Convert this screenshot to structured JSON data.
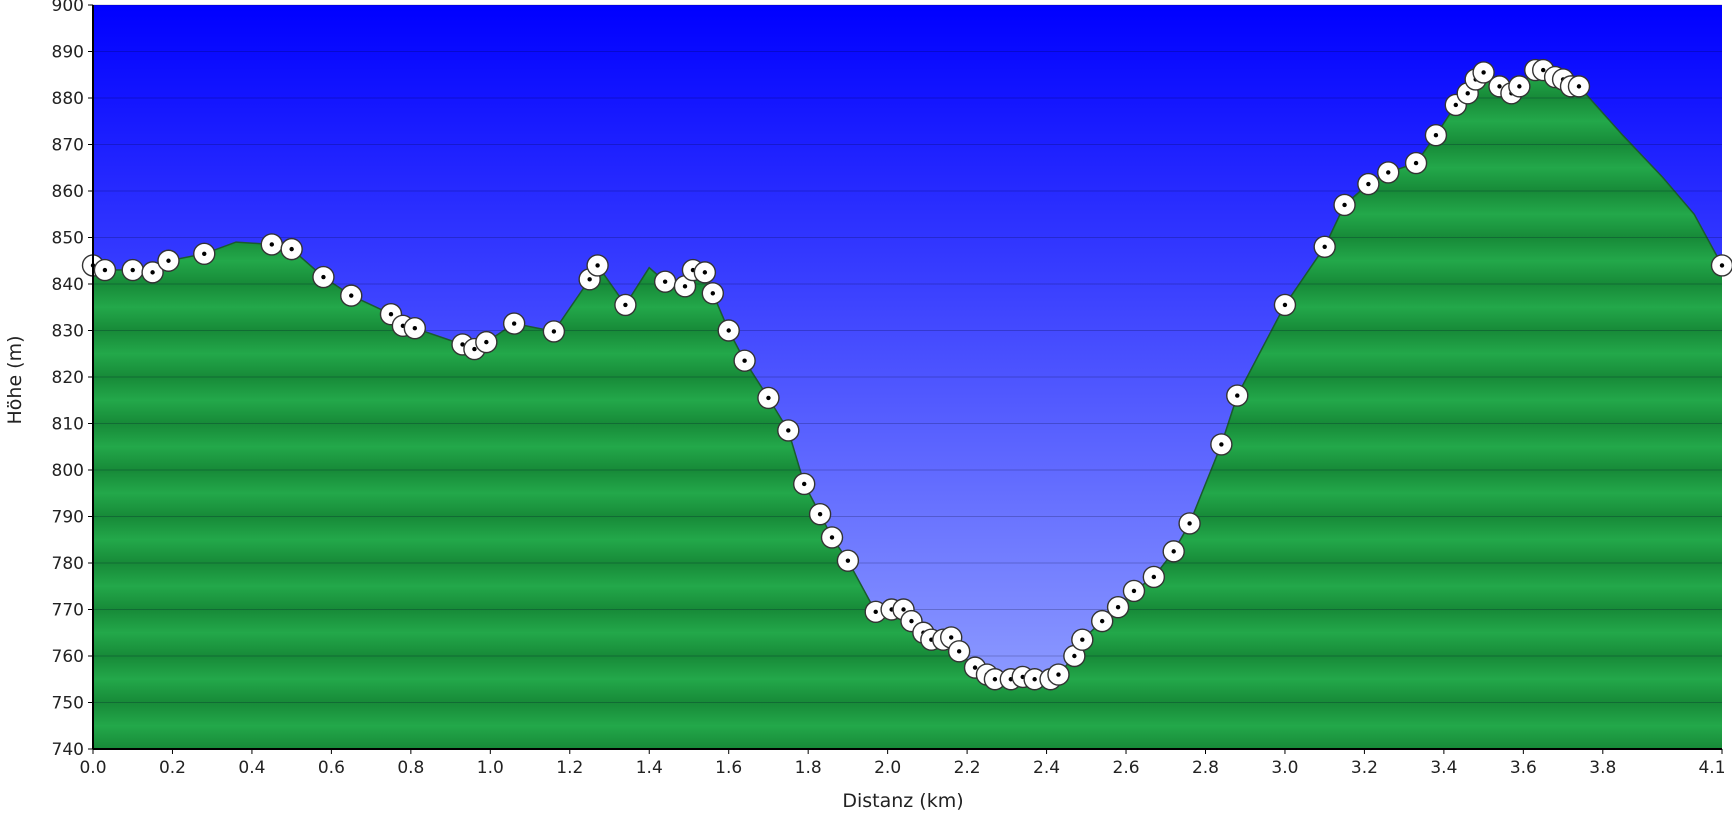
{
  "chart_data": {
    "type": "area",
    "xlabel": "Distanz  (km)",
    "ylabel": "Höhe (m)",
    "xlim": [
      0,
      4.1
    ],
    "ylim": [
      740,
      900
    ],
    "grid": true,
    "colors": {
      "sky_top": "#0000ff",
      "sky_bottom": "#9aa9ff",
      "terrain_light": "#23a84a",
      "terrain_dark": "#178a38",
      "terrain_line": "#1a5a2e",
      "marker_fill": "#ffffff",
      "marker_stroke": "#333333"
    },
    "x_ticks": [
      "0.0",
      "0.2",
      "0.4",
      "0.6",
      "0.8",
      "1.0",
      "1.2",
      "1.4",
      "1.6",
      "1.8",
      "2.0",
      "2.2",
      "2.4",
      "2.6",
      "2.8",
      "3.0",
      "3.2",
      "3.4",
      "3.6",
      "3.8",
      "4.1"
    ],
    "x_tick_values": [
      0,
      0.2,
      0.4,
      0.6,
      0.8,
      1.0,
      1.2,
      1.4,
      1.6,
      1.8,
      2.0,
      2.2,
      2.4,
      2.6,
      2.8,
      3.0,
      3.2,
      3.4,
      3.6,
      3.8,
      4.1
    ],
    "y_ticks": [
      "740",
      "750",
      "760",
      "770",
      "780",
      "790",
      "800",
      "810",
      "820",
      "830",
      "840",
      "850",
      "860",
      "870",
      "880",
      "890",
      "900"
    ],
    "y_tick_values": [
      740,
      750,
      760,
      770,
      780,
      790,
      800,
      810,
      820,
      830,
      840,
      850,
      860,
      870,
      880,
      890,
      900
    ],
    "profile": [
      [
        0.0,
        844
      ],
      [
        0.03,
        843
      ],
      [
        0.1,
        843
      ],
      [
        0.15,
        842.5
      ],
      [
        0.19,
        845
      ],
      [
        0.28,
        846.5
      ],
      [
        0.36,
        849
      ],
      [
        0.45,
        848.5
      ],
      [
        0.5,
        847.5
      ],
      [
        0.58,
        841.5
      ],
      [
        0.65,
        837.5
      ],
      [
        0.75,
        833.5
      ],
      [
        0.78,
        831
      ],
      [
        0.81,
        830.5
      ],
      [
        0.93,
        827
      ],
      [
        0.96,
        826
      ],
      [
        0.99,
        827.5
      ],
      [
        1.06,
        831.5
      ],
      [
        1.16,
        829.8
      ],
      [
        1.25,
        841
      ],
      [
        1.27,
        844
      ],
      [
        1.34,
        835.5
      ],
      [
        1.4,
        843.5
      ],
      [
        1.44,
        840.5
      ],
      [
        1.49,
        839.5
      ],
      [
        1.51,
        843
      ],
      [
        1.54,
        842.5
      ],
      [
        1.56,
        838
      ],
      [
        1.6,
        830
      ],
      [
        1.64,
        823.5
      ],
      [
        1.7,
        815.5
      ],
      [
        1.75,
        808.5
      ],
      [
        1.79,
        797
      ],
      [
        1.83,
        790.5
      ],
      [
        1.86,
        785.5
      ],
      [
        1.9,
        780.5
      ],
      [
        1.97,
        769.5
      ],
      [
        2.01,
        770
      ],
      [
        2.04,
        770
      ],
      [
        2.06,
        767.5
      ],
      [
        2.09,
        765
      ],
      [
        2.11,
        763.5
      ],
      [
        2.14,
        763.5
      ],
      [
        2.16,
        764
      ],
      [
        2.18,
        761
      ],
      [
        2.22,
        757.5
      ],
      [
        2.25,
        756
      ],
      [
        2.27,
        755
      ],
      [
        2.31,
        755
      ],
      [
        2.34,
        755.5
      ],
      [
        2.37,
        755
      ],
      [
        2.41,
        755
      ],
      [
        2.43,
        756
      ],
      [
        2.47,
        760
      ],
      [
        2.49,
        763.5
      ],
      [
        2.54,
        767.5
      ],
      [
        2.58,
        770.5
      ],
      [
        2.62,
        774
      ],
      [
        2.67,
        777
      ],
      [
        2.72,
        782.5
      ],
      [
        2.76,
        788.5
      ],
      [
        2.84,
        805.5
      ],
      [
        2.88,
        816
      ],
      [
        3.0,
        835.5
      ],
      [
        3.1,
        848
      ],
      [
        3.15,
        857
      ],
      [
        3.21,
        861.5
      ],
      [
        3.26,
        864
      ],
      [
        3.33,
        866
      ],
      [
        3.38,
        872
      ],
      [
        3.43,
        878.5
      ],
      [
        3.46,
        881
      ],
      [
        3.48,
        884
      ],
      [
        3.5,
        885.5
      ],
      [
        3.54,
        882.5
      ],
      [
        3.57,
        881
      ],
      [
        3.59,
        882.5
      ],
      [
        3.63,
        886
      ],
      [
        3.65,
        886
      ],
      [
        3.68,
        884.5
      ],
      [
        3.7,
        884
      ],
      [
        3.72,
        882.5
      ],
      [
        3.74,
        882.5
      ],
      [
        3.85,
        872
      ],
      [
        3.95,
        863
      ],
      [
        4.03,
        855
      ],
      [
        4.1,
        844
      ]
    ],
    "waypoints": [
      [
        0.0,
        844
      ],
      [
        0.03,
        843
      ],
      [
        0.1,
        843
      ],
      [
        0.15,
        842.5
      ],
      [
        0.19,
        845
      ],
      [
        0.28,
        846.5
      ],
      [
        0.45,
        848.5
      ],
      [
        0.5,
        847.5
      ],
      [
        0.58,
        841.5
      ],
      [
        0.65,
        837.5
      ],
      [
        0.75,
        833.5
      ],
      [
        0.78,
        831
      ],
      [
        0.81,
        830.5
      ],
      [
        0.93,
        827
      ],
      [
        0.96,
        826
      ],
      [
        0.99,
        827.5
      ],
      [
        1.06,
        831.5
      ],
      [
        1.16,
        829.8
      ],
      [
        1.25,
        841
      ],
      [
        1.27,
        844
      ],
      [
        1.34,
        835.5
      ],
      [
        1.44,
        840.5
      ],
      [
        1.49,
        839.5
      ],
      [
        1.51,
        843
      ],
      [
        1.54,
        842.5
      ],
      [
        1.56,
        838
      ],
      [
        1.6,
        830
      ],
      [
        1.64,
        823.5
      ],
      [
        1.7,
        815.5
      ],
      [
        1.75,
        808.5
      ],
      [
        1.79,
        797
      ],
      [
        1.83,
        790.5
      ],
      [
        1.86,
        785.5
      ],
      [
        1.9,
        780.5
      ],
      [
        1.97,
        769.5
      ],
      [
        2.01,
        770
      ],
      [
        2.04,
        770
      ],
      [
        2.06,
        767.5
      ],
      [
        2.09,
        765
      ],
      [
        2.11,
        763.5
      ],
      [
        2.14,
        763.5
      ],
      [
        2.16,
        764
      ],
      [
        2.18,
        761
      ],
      [
        2.22,
        757.5
      ],
      [
        2.25,
        756
      ],
      [
        2.27,
        755
      ],
      [
        2.31,
        755
      ],
      [
        2.34,
        755.5
      ],
      [
        2.37,
        755
      ],
      [
        2.41,
        755
      ],
      [
        2.43,
        756
      ],
      [
        2.47,
        760
      ],
      [
        2.49,
        763.5
      ],
      [
        2.54,
        767.5
      ],
      [
        2.58,
        770.5
      ],
      [
        2.62,
        774
      ],
      [
        2.67,
        777
      ],
      [
        2.72,
        782.5
      ],
      [
        2.76,
        788.5
      ],
      [
        2.84,
        805.5
      ],
      [
        2.88,
        816
      ],
      [
        3.0,
        835.5
      ],
      [
        3.1,
        848
      ],
      [
        3.15,
        857
      ],
      [
        3.21,
        861.5
      ],
      [
        3.26,
        864
      ],
      [
        3.33,
        866
      ],
      [
        3.38,
        872
      ],
      [
        3.43,
        878.5
      ],
      [
        3.46,
        881
      ],
      [
        3.48,
        884
      ],
      [
        3.5,
        885.5
      ],
      [
        3.54,
        882.5
      ],
      [
        3.57,
        881
      ],
      [
        3.59,
        882.5
      ],
      [
        3.63,
        886
      ],
      [
        3.65,
        886
      ],
      [
        3.68,
        884.5
      ],
      [
        3.7,
        884
      ],
      [
        3.72,
        882.5
      ],
      [
        3.74,
        882.5
      ],
      [
        4.1,
        844
      ]
    ]
  }
}
